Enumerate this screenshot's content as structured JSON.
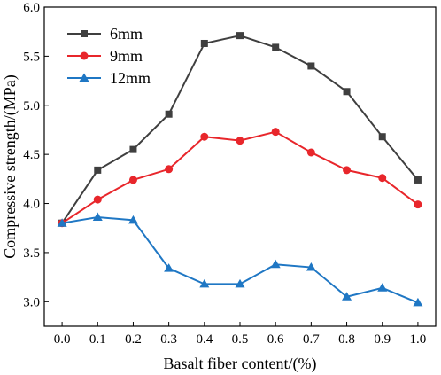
{
  "chart_data": {
    "type": "line",
    "xlabel": "Basalt fiber content/(%)",
    "ylabel": "Compressive strength/(MPa)",
    "xlim": [
      -0.05,
      1.05
    ],
    "ylim": [
      2.75,
      6.0
    ],
    "x_ticks": [
      "0.0",
      "0.1",
      "0.2",
      "0.3",
      "0.4",
      "0.5",
      "0.6",
      "0.7",
      "0.8",
      "0.9",
      "1.0"
    ],
    "y_ticks": [
      "3.0",
      "3.5",
      "4.0",
      "4.5",
      "5.0",
      "5.5",
      "6.0"
    ],
    "x": [
      0.0,
      0.1,
      0.2,
      0.3,
      0.4,
      0.5,
      0.6,
      0.7,
      0.8,
      0.9,
      1.0
    ],
    "legend_position": "top-left",
    "grid": false,
    "series": [
      {
        "name": "6mm",
        "color": "#3f3f3f",
        "marker": "square",
        "values": [
          3.8,
          4.34,
          4.55,
          4.91,
          5.63,
          5.71,
          5.59,
          5.4,
          5.14,
          4.68,
          4.24
        ]
      },
      {
        "name": "9mm",
        "color": "#e8262b",
        "marker": "circle",
        "values": [
          3.8,
          4.04,
          4.24,
          4.35,
          4.68,
          4.64,
          4.73,
          4.52,
          4.34,
          4.26,
          3.99
        ]
      },
      {
        "name": "12mm",
        "color": "#1f77c4",
        "marker": "triangle",
        "values": [
          3.8,
          3.86,
          3.83,
          3.34,
          3.18,
          3.18,
          3.38,
          3.35,
          3.05,
          3.14,
          2.99
        ]
      }
    ]
  }
}
